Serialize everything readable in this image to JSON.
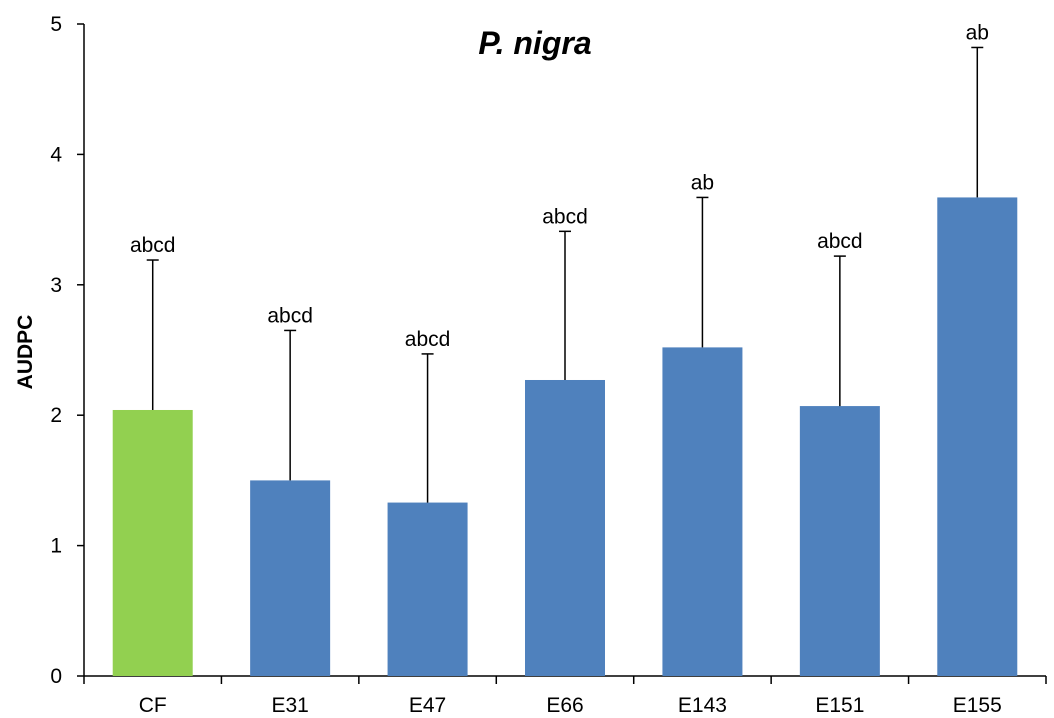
{
  "chart_data": {
    "type": "bar",
    "title": "P. nigra",
    "xlabel": "",
    "ylabel": "AUDPC",
    "ylim": [
      0,
      5
    ],
    "yticks": [
      0,
      1,
      2,
      3,
      4,
      5
    ],
    "grid": false,
    "categories": [
      "CF",
      "E31",
      "E47",
      "E66",
      "E143",
      "E151",
      "E155"
    ],
    "values": [
      2.04,
      1.5,
      1.33,
      2.27,
      2.52,
      2.07,
      3.67
    ],
    "error_upper": [
      1.15,
      1.15,
      1.14,
      1.14,
      1.15,
      1.15,
      1.15
    ],
    "significance_labels": [
      "abcd",
      "abcd",
      "abcd",
      "abcd",
      "ab",
      "abcd",
      "ab"
    ],
    "colors": [
      "#92d050",
      "#4f81bd",
      "#4f81bd",
      "#4f81bd",
      "#4f81bd",
      "#4f81bd",
      "#4f81bd"
    ]
  }
}
